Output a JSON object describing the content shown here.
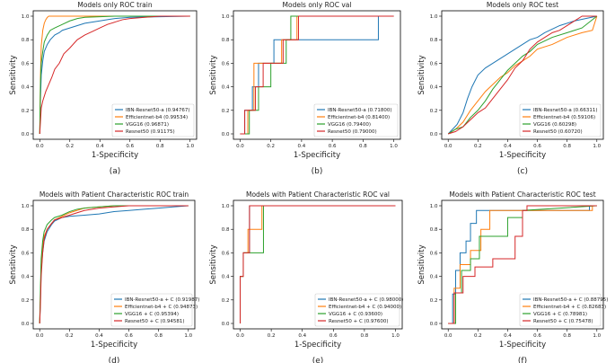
{
  "figure": {
    "type": "roc_grid",
    "xtick_labels": [
      "0.0",
      "0.2",
      "0.4",
      "0.6",
      "0.8",
      "1.0"
    ],
    "ytick_labels": [
      "0.0",
      "0.2",
      "0.4",
      "0.6",
      "0.8",
      "1.0"
    ]
  },
  "colors": {
    "ibn": "#1f77b4",
    "eff": "#ff7f0e",
    "vgg": "#2ca02c",
    "res": "#d62728"
  },
  "chart_data": [
    {
      "type": "line",
      "title": "Models only ROC train",
      "xlabel": "1-Specificity",
      "ylabel": "Sensitivity",
      "panel_label": "(a)",
      "xlim": [
        0,
        1
      ],
      "ylim": [
        0,
        1
      ],
      "series": [
        {
          "name": "IBN-Resnet50-a (0.94767)",
          "color": "ibn",
          "x": [
            0,
            0.005,
            0.01,
            0.02,
            0.03,
            0.05,
            0.07,
            0.1,
            0.13,
            0.15,
            0.2,
            0.25,
            0.3,
            0.4,
            0.45,
            0.5,
            0.6,
            1.0
          ],
          "y": [
            0,
            0.3,
            0.5,
            0.62,
            0.7,
            0.76,
            0.8,
            0.84,
            0.86,
            0.88,
            0.9,
            0.92,
            0.94,
            0.96,
            0.97,
            0.98,
            0.99,
            1.0
          ]
        },
        {
          "name": "Efficientnet-b4 (0.99534)",
          "color": "eff",
          "x": [
            0,
            0.005,
            0.01,
            0.02,
            0.03,
            0.04,
            0.05,
            0.06,
            0.5,
            1.0
          ],
          "y": [
            0,
            0.5,
            0.75,
            0.88,
            0.94,
            0.97,
            0.99,
            1.0,
            1.0,
            1.0
          ]
        },
        {
          "name": "VGG16 (0.96871)",
          "color": "vgg",
          "x": [
            0,
            0.005,
            0.01,
            0.02,
            0.03,
            0.05,
            0.07,
            0.1,
            0.15,
            0.2,
            0.25,
            0.3,
            0.5,
            1.0
          ],
          "y": [
            0,
            0.45,
            0.6,
            0.7,
            0.78,
            0.84,
            0.88,
            0.9,
            0.93,
            0.96,
            0.98,
            0.99,
            1.0,
            1.0
          ]
        },
        {
          "name": "Resnet50 (0.91175)",
          "color": "res",
          "x": [
            0,
            0.01,
            0.02,
            0.04,
            0.06,
            0.08,
            0.1,
            0.13,
            0.16,
            0.2,
            0.25,
            0.3,
            0.35,
            0.4,
            0.45,
            0.5,
            0.55,
            0.6,
            0.7,
            0.8,
            1.0
          ],
          "y": [
            0,
            0.22,
            0.28,
            0.36,
            0.42,
            0.48,
            0.55,
            0.6,
            0.68,
            0.73,
            0.8,
            0.84,
            0.87,
            0.9,
            0.93,
            0.95,
            0.97,
            0.98,
            0.99,
            1.0,
            1.0
          ]
        }
      ]
    },
    {
      "type": "line",
      "title": "Models only ROC val",
      "xlabel": "1-Specificity",
      "ylabel": "Sensitivity",
      "panel_label": "(b)",
      "xlim": [
        0,
        1
      ],
      "ylim": [
        0,
        1
      ],
      "series": [
        {
          "name": "IBN-Resnet50-a (0.71800)",
          "color": "ibn",
          "x": [
            0,
            0.03,
            0.03,
            0.08,
            0.08,
            0.12,
            0.12,
            0.22,
            0.22,
            0.9,
            0.9,
            1.0
          ],
          "y": [
            0,
            0,
            0.2,
            0.2,
            0.4,
            0.4,
            0.6,
            0.6,
            0.8,
            0.8,
            1.0,
            1.0
          ]
        },
        {
          "name": "Efficientnet-b4 (0.81400)",
          "color": "eff",
          "x": [
            0,
            0.05,
            0.05,
            0.09,
            0.09,
            0.12,
            0.12,
            0.27,
            0.27,
            0.37,
            0.37,
            1.0
          ],
          "y": [
            0,
            0,
            0.2,
            0.2,
            0.6,
            0.6,
            0.6,
            0.6,
            0.8,
            0.8,
            1.0,
            1.0
          ]
        },
        {
          "name": "VGG16 (0.79400)",
          "color": "vgg",
          "x": [
            0,
            0.06,
            0.06,
            0.12,
            0.12,
            0.2,
            0.2,
            0.3,
            0.3,
            0.33,
            0.33,
            1.0
          ],
          "y": [
            0,
            0,
            0.2,
            0.2,
            0.4,
            0.4,
            0.6,
            0.6,
            0.8,
            0.8,
            1.0,
            1.0
          ]
        },
        {
          "name": "Resnet50 (0.79000)",
          "color": "res",
          "x": [
            0,
            0.03,
            0.03,
            0.1,
            0.1,
            0.15,
            0.15,
            0.28,
            0.28,
            0.38,
            0.38,
            1.0
          ],
          "y": [
            0,
            0,
            0.2,
            0.2,
            0.4,
            0.4,
            0.6,
            0.6,
            0.8,
            0.8,
            1.0,
            1.0
          ]
        }
      ]
    },
    {
      "type": "line",
      "title": "Models only ROC test",
      "xlabel": "1-Specificity",
      "ylabel": "Sensitivity",
      "panel_label": "(c)",
      "xlim": [
        0,
        1
      ],
      "ylim": [
        0,
        1
      ],
      "series": [
        {
          "name": "IBN-Resnet50-a (0.66311)",
          "color": "ibn",
          "x": [
            0,
            0.03,
            0.06,
            0.1,
            0.13,
            0.16,
            0.2,
            0.25,
            0.3,
            0.35,
            0.4,
            0.45,
            0.5,
            0.55,
            0.6,
            0.65,
            0.75,
            0.85,
            1.0
          ],
          "y": [
            0,
            0.04,
            0.08,
            0.18,
            0.3,
            0.4,
            0.5,
            0.56,
            0.6,
            0.64,
            0.68,
            0.72,
            0.76,
            0.8,
            0.82,
            0.86,
            0.92,
            0.96,
            1.0
          ]
        },
        {
          "name": "Efficientnet-b4 (0.59106)",
          "color": "eff",
          "x": [
            0,
            0.05,
            0.1,
            0.15,
            0.2,
            0.25,
            0.3,
            0.35,
            0.4,
            0.45,
            0.5,
            0.55,
            0.6,
            0.7,
            0.8,
            0.9,
            0.97,
            1.0
          ],
          "y": [
            0,
            0.04,
            0.1,
            0.2,
            0.28,
            0.36,
            0.42,
            0.48,
            0.52,
            0.58,
            0.62,
            0.66,
            0.72,
            0.76,
            0.82,
            0.86,
            0.88,
            1.0
          ]
        },
        {
          "name": "VGG16 (0.60298)",
          "color": "vgg",
          "x": [
            0,
            0.05,
            0.1,
            0.15,
            0.2,
            0.25,
            0.3,
            0.35,
            0.4,
            0.45,
            0.5,
            0.55,
            0.6,
            0.7,
            0.8,
            0.9,
            1.0
          ],
          "y": [
            0,
            0.04,
            0.06,
            0.14,
            0.2,
            0.28,
            0.38,
            0.46,
            0.54,
            0.6,
            0.66,
            0.7,
            0.76,
            0.82,
            0.86,
            0.9,
            1.0
          ]
        },
        {
          "name": "Resnet50 (0.60720)",
          "color": "res",
          "x": [
            0,
            0.05,
            0.1,
            0.15,
            0.2,
            0.25,
            0.3,
            0.35,
            0.4,
            0.45,
            0.5,
            0.55,
            0.6,
            0.65,
            0.7,
            0.75,
            0.8,
            0.9,
            1.0
          ],
          "y": [
            0,
            0.02,
            0.06,
            0.12,
            0.18,
            0.22,
            0.3,
            0.38,
            0.46,
            0.56,
            0.62,
            0.72,
            0.78,
            0.82,
            0.86,
            0.88,
            0.92,
            1.0,
            1.0
          ]
        }
      ]
    },
    {
      "type": "line",
      "title": "Models with Patient Characteristic ROC train",
      "xlabel": "1-Specificity",
      "ylabel": "Sensitivity",
      "panel_label": "(d)",
      "xlim": [
        0,
        1
      ],
      "ylim": [
        0,
        1
      ],
      "series": [
        {
          "name": "IBN-Resnet50-a + C (0.91987)",
          "color": "ibn",
          "x": [
            0,
            0.005,
            0.01,
            0.02,
            0.03,
            0.05,
            0.08,
            0.1,
            0.15,
            0.2,
            0.3,
            0.4,
            0.5,
            0.6,
            0.7,
            0.8,
            0.9,
            1.0
          ],
          "y": [
            0,
            0.2,
            0.45,
            0.6,
            0.7,
            0.78,
            0.84,
            0.87,
            0.9,
            0.91,
            0.92,
            0.93,
            0.95,
            0.96,
            0.97,
            0.98,
            0.99,
            1.0
          ]
        },
        {
          "name": "Efficientnet-b4 + C (0.94873)",
          "color": "eff",
          "x": [
            0,
            0.005,
            0.01,
            0.02,
            0.03,
            0.05,
            0.08,
            0.1,
            0.15,
            0.2,
            0.25,
            0.3,
            0.4,
            0.5,
            0.6,
            1.0
          ],
          "y": [
            0,
            0.25,
            0.5,
            0.65,
            0.74,
            0.8,
            0.85,
            0.88,
            0.91,
            0.94,
            0.96,
            0.98,
            0.99,
            1.0,
            1.0,
            1.0
          ]
        },
        {
          "name": "VGG16 + C (0.95394)",
          "color": "vgg",
          "x": [
            0,
            0.005,
            0.01,
            0.02,
            0.03,
            0.05,
            0.08,
            0.1,
            0.15,
            0.2,
            0.25,
            0.3,
            0.4,
            0.5,
            1.0
          ],
          "y": [
            0,
            0.3,
            0.55,
            0.7,
            0.78,
            0.84,
            0.88,
            0.9,
            0.92,
            0.95,
            0.97,
            0.98,
            0.99,
            1.0,
            1.0
          ]
        },
        {
          "name": "Resnet50 + C (0.94581)",
          "color": "res",
          "x": [
            0,
            0.005,
            0.01,
            0.02,
            0.03,
            0.05,
            0.08,
            0.1,
            0.15,
            0.2,
            0.25,
            0.3,
            0.4,
            0.5,
            0.6,
            1.0
          ],
          "y": [
            0,
            0.15,
            0.4,
            0.6,
            0.72,
            0.8,
            0.85,
            0.88,
            0.9,
            0.92,
            0.94,
            0.96,
            0.98,
            0.99,
            1.0,
            1.0
          ]
        }
      ]
    },
    {
      "type": "line",
      "title": "Models with Patient Characteristic ROC val",
      "xlabel": "1-Specificity",
      "ylabel": "Sensitivity",
      "panel_label": "(e)",
      "xlim": [
        0,
        1
      ],
      "ylim": [
        0,
        1
      ],
      "series": [
        {
          "name": "IBN-Resnet50-a + C (0.98000)",
          "color": "ibn",
          "x": [
            0,
            0.0,
            0.02,
            0.02,
            0.06,
            0.06,
            1.0
          ],
          "y": [
            0,
            0.4,
            0.4,
            0.6,
            0.6,
            1.0,
            1.0
          ]
        },
        {
          "name": "Efficientnet-b4 + C (0.94000)",
          "color": "eff",
          "x": [
            0,
            0.0,
            0.02,
            0.02,
            0.05,
            0.05,
            0.14,
            0.14,
            1.0
          ],
          "y": [
            0,
            0.4,
            0.4,
            0.6,
            0.6,
            0.8,
            0.8,
            1.0,
            1.0
          ]
        },
        {
          "name": "VGG16 + C (0.93600)",
          "color": "vgg",
          "x": [
            0,
            0.0,
            0.02,
            0.02,
            0.05,
            0.05,
            0.15,
            0.15,
            1.0
          ],
          "y": [
            0,
            0.4,
            0.4,
            0.6,
            0.6,
            0.6,
            0.6,
            1.0,
            1.0
          ]
        },
        {
          "name": "Resnet50 + C (0.97600)",
          "color": "res",
          "x": [
            0,
            0.0,
            0.02,
            0.02,
            0.06,
            0.06,
            1.0
          ],
          "y": [
            0,
            0.4,
            0.4,
            0.6,
            0.6,
            1.0,
            1.0
          ]
        }
      ]
    },
    {
      "type": "line",
      "title": "Models with Patient Characteristic ROC test",
      "xlabel": "1-Specificity",
      "ylabel": "Sensitivity",
      "panel_label": "(f)",
      "xlim": [
        0,
        1
      ],
      "ylim": [
        0,
        1
      ],
      "series": [
        {
          "name": "IBN-Resnet50-a + C (0.88795)",
          "color": "ibn",
          "x": [
            0,
            0.03,
            0.03,
            0.05,
            0.05,
            0.08,
            0.08,
            0.12,
            0.12,
            0.15,
            0.15,
            0.19,
            0.19,
            0.95,
            0.95,
            1.0
          ],
          "y": [
            0,
            0,
            0.25,
            0.25,
            0.45,
            0.45,
            0.6,
            0.6,
            0.7,
            0.7,
            0.85,
            0.85,
            0.96,
            0.96,
            1.0,
            1.0
          ]
        },
        {
          "name": "Efficientnet-b4 + C (0.82683)",
          "color": "eff",
          "x": [
            0,
            0.04,
            0.04,
            0.08,
            0.08,
            0.15,
            0.15,
            0.22,
            0.22,
            0.28,
            0.28,
            0.97,
            0.97,
            1.0
          ],
          "y": [
            0,
            0,
            0.3,
            0.3,
            0.5,
            0.5,
            0.62,
            0.62,
            0.8,
            0.8,
            0.96,
            0.96,
            1.0,
            1.0
          ]
        },
        {
          "name": "VGG16 + C (0.78981)",
          "color": "vgg",
          "x": [
            0,
            0.05,
            0.05,
            0.09,
            0.09,
            0.15,
            0.15,
            0.21,
            0.21,
            0.4,
            0.4,
            0.5,
            0.5,
            1.0
          ],
          "y": [
            0,
            0,
            0.26,
            0.26,
            0.45,
            0.45,
            0.55,
            0.55,
            0.74,
            0.74,
            0.9,
            0.9,
            0.96,
            1.0
          ]
        },
        {
          "name": "Resnet50 + C (0.75478)",
          "color": "res",
          "x": [
            0,
            0.04,
            0.04,
            0.1,
            0.1,
            0.18,
            0.18,
            0.3,
            0.3,
            0.45,
            0.45,
            0.5,
            0.5,
            0.53,
            0.53,
            1.0
          ],
          "y": [
            0,
            0,
            0.26,
            0.26,
            0.4,
            0.4,
            0.48,
            0.48,
            0.55,
            0.55,
            0.74,
            0.74,
            0.96,
            0.96,
            1.0,
            1.0
          ]
        }
      ]
    }
  ]
}
